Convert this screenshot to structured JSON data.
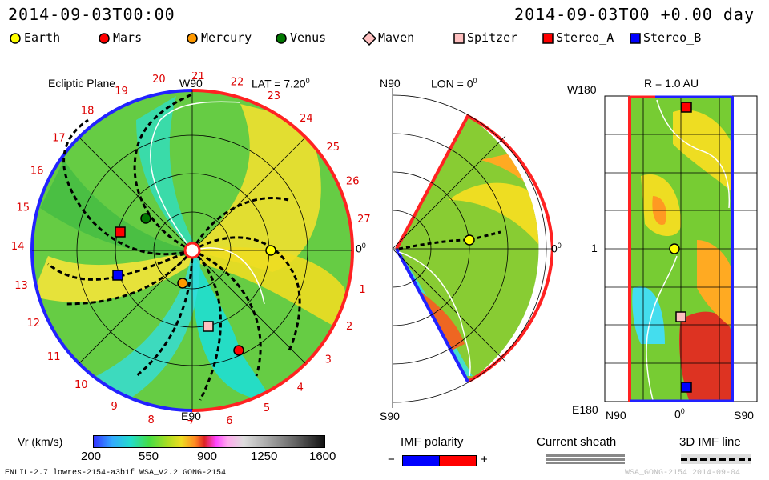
{
  "header": {
    "timestamp_left": "2014-09-03T00:00",
    "timestamp_right": "2014-09-03T00 +0.00 day"
  },
  "legend": [
    {
      "name": "Earth",
      "shape": "circle",
      "color": "#ffff00"
    },
    {
      "name": "Mars",
      "shape": "circle",
      "color": "#ff0000"
    },
    {
      "name": "Mercury",
      "shape": "circle",
      "color": "#ff9900"
    },
    {
      "name": "Venus",
      "shape": "circle",
      "color": "#007700"
    },
    {
      "name": "Maven",
      "shape": "diamond",
      "color": "#ffc0c0"
    },
    {
      "name": "Spitzer",
      "shape": "square",
      "color": "#ffc0c0"
    },
    {
      "name": "Stereo_A",
      "shape": "square",
      "color": "#ff0000"
    },
    {
      "name": "Stereo_B",
      "shape": "square",
      "color": "#0000ff"
    }
  ],
  "panel1": {
    "title": "Ecliptic Plane",
    "top_label": "W90",
    "bottom_label": "E90",
    "right_label": "0",
    "right_sup": "0",
    "lat_label": "LAT = 7.20",
    "lat_sup": "0",
    "rotation_numbers": [
      "1",
      "2",
      "3",
      "4",
      "5",
      "6",
      "7",
      "8",
      "9",
      "10",
      "11",
      "12",
      "13",
      "14",
      "15",
      "16",
      "17",
      "18",
      "19",
      "20",
      "21",
      "22",
      "23",
      "24",
      "25",
      "26",
      "27"
    ]
  },
  "panel2": {
    "top_label": "N90",
    "bottom_label": "S90",
    "lon_label": "LON = 0",
    "lon_sup": "0",
    "right_label": "0",
    "right_sup": "0"
  },
  "panel3": {
    "title": "R = 1.0 AU",
    "top_left": "W180",
    "mid_left": "1",
    "bottom_left": "E180",
    "x_labels": [
      "N90",
      "0",
      "S90"
    ],
    "x_sup": "0"
  },
  "colorbar": {
    "label": "Vr (km/s)",
    "ticks": [
      "200",
      "550",
      "900",
      "1250",
      "1600"
    ]
  },
  "imf": {
    "label": "IMF polarity",
    "minus": "−",
    "plus": "+",
    "colors": [
      "#0000ff",
      "#ff0000"
    ]
  },
  "current_sheath": {
    "label": "Current sheath"
  },
  "imf_line": {
    "label": "3D IMF line"
  },
  "footer": {
    "left": "ENLIL-2.7 lowres-2154-a3b1f WSA_V2.2 GONG-2154",
    "right": "WSA_GONG-2154 2014-09-04"
  },
  "chart_data": [
    {
      "type": "heatmap",
      "title": "Ecliptic Plane",
      "subtitle": "LAT = 7.20",
      "value_label": "Vr (km/s)",
      "value_range": [
        200,
        1600
      ],
      "bodies": [
        "Earth",
        "Mars",
        "Mercury",
        "Venus",
        "Spitzer",
        "Stereo_A",
        "Stereo_B"
      ]
    },
    {
      "type": "heatmap",
      "subtitle": "LON = 0",
      "value_label": "Vr (km/s)",
      "value_range": [
        200,
        1600
      ],
      "bodies": [
        "Earth"
      ]
    },
    {
      "type": "heatmap",
      "title": "R = 1.0 AU",
      "value_label": "Vr (km/s)",
      "value_range": [
        200,
        1600
      ],
      "bodies": [
        "Earth",
        "Spitzer",
        "Stereo_A",
        "Stereo_B"
      ]
    }
  ]
}
